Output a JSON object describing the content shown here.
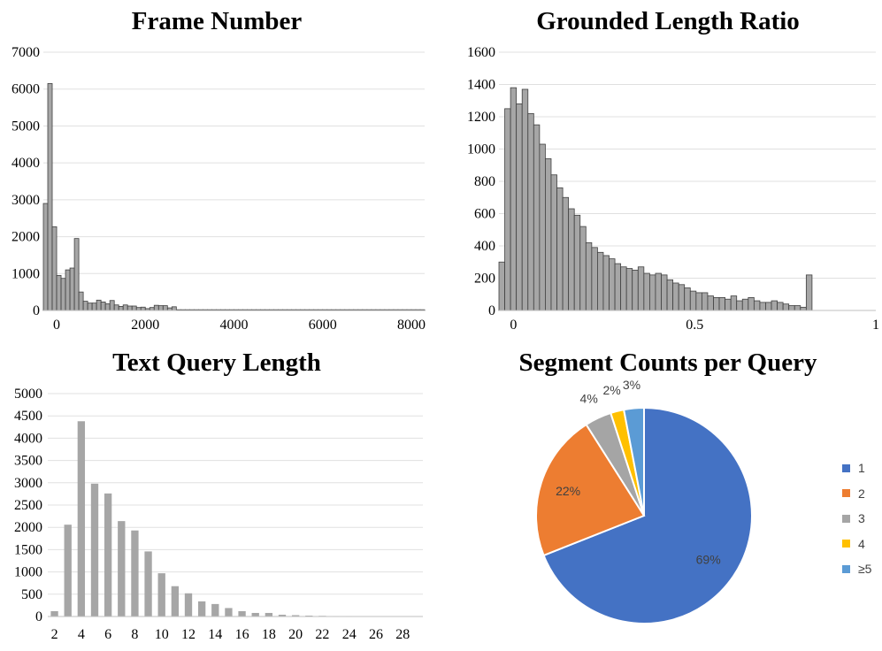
{
  "chart_data": [
    {
      "type": "bar",
      "title": "Frame Number",
      "xlabel": "",
      "ylabel": "",
      "xlim": [
        -300,
        8300
      ],
      "ylim": [
        0,
        7000
      ],
      "y_ticks": [
        0,
        1000,
        2000,
        3000,
        4000,
        5000,
        6000,
        7000
      ],
      "x_ticks": [
        0,
        2000,
        4000,
        6000,
        8000
      ],
      "bin_start": -300,
      "bin_width": 100,
      "values": [
        2900,
        6150,
        2270,
        950,
        870,
        1100,
        1150,
        1950,
        500,
        250,
        200,
        200,
        280,
        230,
        180,
        270,
        150,
        110,
        150,
        120,
        120,
        80,
        90,
        50,
        80,
        140,
        130,
        130,
        70,
        100,
        20,
        20,
        20,
        20,
        20,
        20,
        20,
        20,
        20,
        20,
        20,
        20,
        20,
        20,
        20,
        20,
        20,
        20,
        20,
        20,
        20,
        20,
        20,
        20,
        20,
        20,
        20,
        20,
        20,
        20,
        20,
        20,
        20,
        20,
        20,
        20,
        20,
        20,
        20,
        20,
        20,
        20,
        20,
        20,
        20,
        20,
        20,
        20,
        20,
        20,
        20,
        20,
        20,
        20,
        20,
        20
      ]
    },
    {
      "type": "bar",
      "title": "Grounded Length Ratio",
      "xlabel": "",
      "ylabel": "",
      "xlim": [
        -0.04,
        1.0
      ],
      "ylim": [
        0,
        1600
      ],
      "y_ticks": [
        0,
        200,
        400,
        600,
        800,
        1000,
        1200,
        1400,
        1600
      ],
      "x_ticks": [
        0,
        0.5,
        1
      ],
      "bin_start": -0.04,
      "bin_width": 0.016,
      "values": [
        300,
        1250,
        1380,
        1280,
        1370,
        1220,
        1150,
        1030,
        940,
        840,
        760,
        700,
        630,
        590,
        520,
        420,
        390,
        360,
        340,
        320,
        290,
        270,
        260,
        250,
        270,
        230,
        220,
        230,
        220,
        190,
        170,
        160,
        140,
        120,
        110,
        110,
        90,
        80,
        80,
        70,
        90,
        60,
        70,
        80,
        60,
        50,
        50,
        60,
        50,
        40,
        30,
        30,
        20,
        220
      ]
    },
    {
      "type": "bar",
      "title": "Text Query Length",
      "xlabel": "",
      "ylabel": "",
      "ylim": [
        0,
        5000
      ],
      "y_ticks": [
        0,
        500,
        1000,
        1500,
        2000,
        2500,
        3000,
        3500,
        4000,
        4500,
        5000
      ],
      "categories": [
        "2",
        "3",
        "4",
        "5",
        "6",
        "7",
        "8",
        "9",
        "10",
        "11",
        "12",
        "13",
        "14",
        "15",
        "16",
        "17",
        "18",
        "19",
        "20",
        "21",
        "22",
        "23",
        "24",
        "25",
        "26",
        "27",
        "28",
        "29"
      ],
      "x_tick_labels": [
        "2",
        "4",
        "6",
        "8",
        "10",
        "12",
        "14",
        "16",
        "18",
        "20",
        "22",
        "24",
        "26",
        "28"
      ],
      "values": [
        120,
        2060,
        4380,
        2980,
        2760,
        2140,
        1930,
        1460,
        970,
        680,
        520,
        340,
        280,
        190,
        120,
        80,
        80,
        40,
        30,
        20,
        15,
        10,
        10,
        8,
        5,
        5,
        3,
        3
      ]
    },
    {
      "type": "pie",
      "title": "Segment Counts per Query",
      "labels": [
        "1",
        "2",
        "3",
        "4",
        "≥5"
      ],
      "values": [
        69,
        22,
        4,
        2,
        3
      ],
      "value_labels": [
        "69%",
        "22%",
        "4%",
        "2%",
        "3%"
      ],
      "colors": [
        "#4472C4",
        "#ED7D31",
        "#A5A5A5",
        "#FFC000",
        "#5B9BD5"
      ]
    }
  ]
}
